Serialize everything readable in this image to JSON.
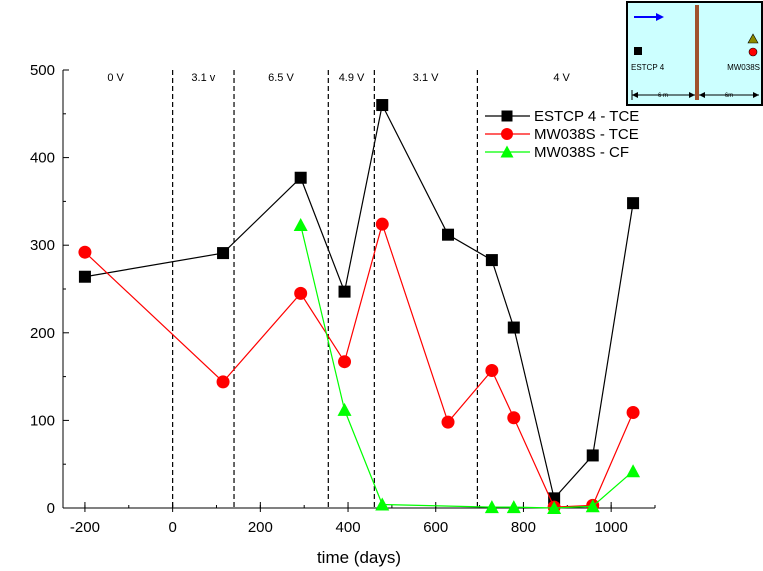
{
  "chart_data": {
    "type": "line",
    "title": "",
    "xlabel": "time (days)",
    "ylabel": "",
    "xlim": [
      -250,
      1100
    ],
    "ylim": [
      0,
      500
    ],
    "xticks": [
      -200,
      0,
      200,
      400,
      600,
      800,
      1000
    ],
    "yticks": [
      0,
      100,
      200,
      300,
      400,
      500
    ],
    "grid": false,
    "legend_position": "top-right",
    "voltage_boundaries": [
      0,
      140,
      355,
      460,
      695
    ],
    "voltage_labels": [
      {
        "text": "0 V",
        "x": -130
      },
      {
        "text": "3.1 v",
        "x": 70
      },
      {
        "text": "6.5 V",
        "x": 247
      },
      {
        "text": "4.9 V",
        "x": 408
      },
      {
        "text": "3.1 V",
        "x": 577
      },
      {
        "text": "4 V",
        "x": 887
      }
    ],
    "series": [
      {
        "name": "ESTCP 4 - TCE",
        "color": "#000000",
        "marker": "square",
        "x": [
          -200,
          115,
          292,
          392,
          478,
          628,
          728,
          778,
          870,
          958,
          1050
        ],
        "y": [
          264,
          291,
          377,
          247,
          460,
          312,
          283,
          206,
          11,
          60,
          348
        ]
      },
      {
        "name": "MW038S - TCE",
        "color": "#ff0000",
        "marker": "circle",
        "x": [
          -200,
          115,
          292,
          392,
          478,
          628,
          728,
          778,
          870,
          958,
          1050
        ],
        "y": [
          292,
          144,
          245,
          167,
          324,
          98,
          157,
          103,
          1,
          3,
          109
        ]
      },
      {
        "name": "MW038S - CF",
        "color": "#00ff00",
        "marker": "triangle",
        "x": [
          292,
          392,
          478,
          728,
          778,
          870,
          958,
          1050
        ],
        "y": [
          323,
          112,
          4,
          1,
          1,
          0,
          2,
          42
        ]
      }
    ]
  },
  "inset": {
    "well_left_label": "ESTCP 4",
    "well_right_label": "MW038S",
    "dist_left": "6 m",
    "dist_right": "6m",
    "background": "#ccffff",
    "barrier_color": "#a0522d",
    "arrow_color": "#0000ff"
  }
}
